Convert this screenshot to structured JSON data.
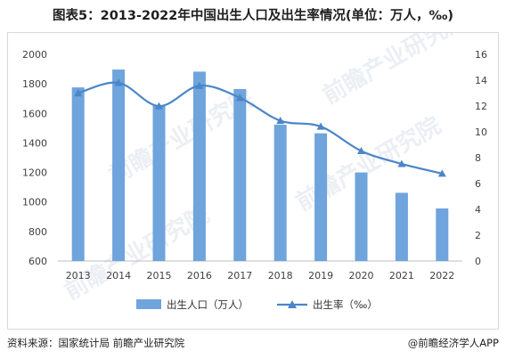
{
  "title": "图表5：2013-2022年中国出生人口及出生率情况(单位：万人，‰)",
  "footer": {
    "source": "资料来源：国家统计局 前瞻产业研究院",
    "brand": "@前瞻经济学人APP"
  },
  "watermark": "前瞻产业研究院",
  "colors": {
    "bar": "#6fa4dc",
    "line": "#4a86c8",
    "axis": "#bfbfbf",
    "grid": "#e6e6e6"
  },
  "chart_data": {
    "type": "bar",
    "categories": [
      "2013",
      "2014",
      "2015",
      "2016",
      "2017",
      "2018",
      "2019",
      "2020",
      "2021",
      "2022"
    ],
    "series": [
      {
        "name": "出生人口（万人）",
        "type": "bar",
        "axis": "left",
        "values": [
          1776,
          1897,
          1655,
          1883,
          1765,
          1523,
          1465,
          1200,
          1062,
          956
        ]
      },
      {
        "name": "出生率（‰）",
        "type": "line",
        "axis": "right",
        "values": [
          13.0,
          13.8,
          11.99,
          13.57,
          12.64,
          10.86,
          10.41,
          8.52,
          7.52,
          6.77
        ]
      }
    ],
    "y_left": {
      "ylim": [
        600,
        2000
      ],
      "ticks": [
        "600",
        "800",
        "1000",
        "1200",
        "1400",
        "1600",
        "1800",
        "2000"
      ]
    },
    "y_right": {
      "ylim": [
        0,
        16
      ],
      "ticks": [
        "0",
        "2",
        "4",
        "6",
        "8",
        "10",
        "12",
        "14",
        "16"
      ]
    },
    "legend_position": "bottom-center",
    "grid": false
  }
}
